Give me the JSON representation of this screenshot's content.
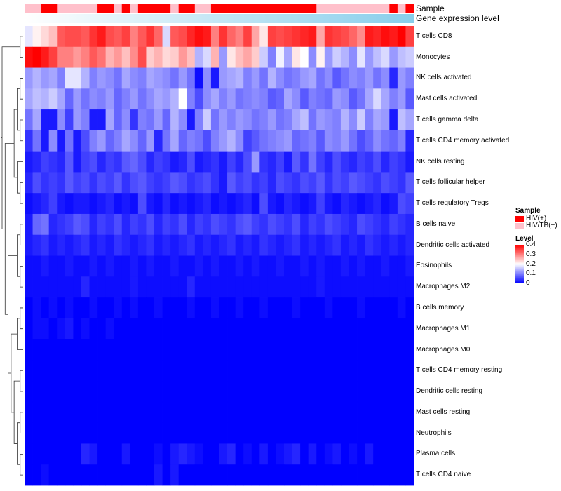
{
  "chart_data": {
    "type": "heatmap",
    "annotation_rows": {
      "sample_label": "Sample",
      "expression_label": "Gene expression level"
    },
    "rows": [
      "T cells CD8",
      "Monocytes",
      "NK cells activated",
      "Mast cells activated",
      "T cells gamma delta",
      "T cells CD4 memory activated",
      "NK cells resting",
      "T cells follicular helper",
      "T cells regulatory  Tregs",
      "B cells naive",
      "Dendritic cells activated",
      "Eosinophils",
      "Macrophages M2",
      "B cells memory",
      "Macrophages M1",
      "Macrophages M0",
      "T cells CD4 memory resting",
      "Dendritic cells resting",
      "Mast cells resting",
      "Neutrophils",
      "Plasma cells",
      "T cells CD4 naive"
    ],
    "sample_groups": [
      1,
      1,
      0,
      0,
      1,
      1,
      1,
      1,
      1,
      0,
      0,
      1,
      0,
      1,
      0,
      0,
      0,
      0,
      1,
      0,
      0,
      1,
      1,
      0,
      0,
      0,
      0,
      0,
      0,
      0,
      0,
      0,
      0,
      0,
      0,
      0,
      1,
      1,
      1,
      1,
      1,
      1,
      1,
      1,
      1,
      0,
      1,
      0
    ],
    "values": [
      [
        0.18,
        0.21,
        0.23,
        0.25,
        0.33,
        0.34,
        0.34,
        0.33,
        0.36,
        0.38,
        0.34,
        0.33,
        0.35,
        0.3,
        0.33,
        0.36,
        0.32,
        0.17,
        0.33,
        0.34,
        0.37,
        0.39,
        0.38,
        0.3,
        0.36,
        0.32,
        0.3,
        0.35,
        0.27,
        0.22,
        0.35,
        0.34,
        0.35,
        0.36,
        0.37,
        0.38,
        0.27,
        0.36,
        0.35,
        0.34,
        0.32,
        0.29,
        0.38,
        0.37,
        0.39,
        0.38,
        0.4,
        0.35
      ],
      [
        0.39,
        0.4,
        0.38,
        0.35,
        0.3,
        0.3,
        0.28,
        0.3,
        0.33,
        0.31,
        0.26,
        0.28,
        0.25,
        0.29,
        0.34,
        0.24,
        0.26,
        0.23,
        0.24,
        0.28,
        0.25,
        0.14,
        0.17,
        0.26,
        0.12,
        0.22,
        0.25,
        0.27,
        0.24,
        0.16,
        0.1,
        0.19,
        0.13,
        0.22,
        0.2,
        0.11,
        0.21,
        0.12,
        0.16,
        0.14,
        0.11,
        0.18,
        0.12,
        0.15,
        0.17,
        0.12,
        0.15,
        0.16
      ],
      [
        0.12,
        0.14,
        0.12,
        0.13,
        0.1,
        0.18,
        0.18,
        0.14,
        0.1,
        0.12,
        0.11,
        0.09,
        0.13,
        0.11,
        0.1,
        0.13,
        0.12,
        0.11,
        0.09,
        0.12,
        0.09,
        0.01,
        0.11,
        0.02,
        0.12,
        0.13,
        0.14,
        0.1,
        0.12,
        0.09,
        0.14,
        0.11,
        0.09,
        0.1,
        0.12,
        0.13,
        0.09,
        0.11,
        0.07,
        0.09,
        0.11,
        0.1,
        0.12,
        0.09,
        0.11,
        0.03,
        0.12,
        0.1
      ],
      [
        0.13,
        0.15,
        0.14,
        0.16,
        0.13,
        0.08,
        0.12,
        0.09,
        0.11,
        0.1,
        0.12,
        0.08,
        0.1,
        0.12,
        0.09,
        0.11,
        0.13,
        0.12,
        0.14,
        0.2,
        0.1,
        0.06,
        0.11,
        0.13,
        0.1,
        0.12,
        0.09,
        0.1,
        0.11,
        0.1,
        0.07,
        0.08,
        0.13,
        0.11,
        0.07,
        0.1,
        0.09,
        0.08,
        0.12,
        0.11,
        0.07,
        0.09,
        0.13,
        0.17,
        0.13,
        0.1,
        0.12,
        0.07
      ],
      [
        0.09,
        0.13,
        0.02,
        0.02,
        0.11,
        0.05,
        0.12,
        0.1,
        0.02,
        0.02,
        0.13,
        0.08,
        0.11,
        0.04,
        0.1,
        0.09,
        0.12,
        0.08,
        0.14,
        0.11,
        0.02,
        0.1,
        0.16,
        0.09,
        0.12,
        0.1,
        0.12,
        0.11,
        0.09,
        0.1,
        0.12,
        0.09,
        0.1,
        0.13,
        0.15,
        0.09,
        0.12,
        0.11,
        0.1,
        0.14,
        0.11,
        0.16,
        0.1,
        0.13,
        0.12,
        0.02,
        0.15,
        0.13
      ],
      [
        0.04,
        0.09,
        0.02,
        0.11,
        0.02,
        0.09,
        0.02,
        0.06,
        0.1,
        0.12,
        0.08,
        0.1,
        0.13,
        0.11,
        0.08,
        0.12,
        0.03,
        0.09,
        0.13,
        0.08,
        0.1,
        0.09,
        0.06,
        0.1,
        0.12,
        0.14,
        0.11,
        0.05,
        0.07,
        0.09,
        0.1,
        0.11,
        0.12,
        0.08,
        0.09,
        0.1,
        0.07,
        0.11,
        0.1,
        0.12,
        0.09,
        0.06,
        0.08,
        0.11,
        0.09,
        0.08,
        0.1,
        0.03
      ],
      [
        0.02,
        0.03,
        0.05,
        0.04,
        0.03,
        0.07,
        0.02,
        0.05,
        0.06,
        0.03,
        0.05,
        0.04,
        0.07,
        0.08,
        0.06,
        0.03,
        0.05,
        0.04,
        0.02,
        0.03,
        0.06,
        0.02,
        0.03,
        0.04,
        0.02,
        0.05,
        0.03,
        0.06,
        0.12,
        0.04,
        0.03,
        0.05,
        0.02,
        0.07,
        0.04,
        0.09,
        0.05,
        0.03,
        0.06,
        0.04,
        0.03,
        0.05,
        0.04,
        0.06,
        0.03,
        0.05,
        0.04,
        0.02
      ],
      [
        0.03,
        0.06,
        0.04,
        0.05,
        0.04,
        0.07,
        0.05,
        0.06,
        0.04,
        0.06,
        0.05,
        0.07,
        0.04,
        0.06,
        0.07,
        0.05,
        0.04,
        0.05,
        0.07,
        0.06,
        0.04,
        0.05,
        0.06,
        0.04,
        0.02,
        0.07,
        0.05,
        0.06,
        0.04,
        0.05,
        0.03,
        0.06,
        0.05,
        0.04,
        0.06,
        0.05,
        0.07,
        0.04,
        0.06,
        0.05,
        0.07,
        0.06,
        0.05,
        0.04,
        0.06,
        0.05,
        0.04,
        0.07
      ],
      [
        0.01,
        0.02,
        0.03,
        0.05,
        0.02,
        0.01,
        0.02,
        0.02,
        0.01,
        0.02,
        0.03,
        0.01,
        0.02,
        0.01,
        0.06,
        0.02,
        0.01,
        0.03,
        0.01,
        0.02,
        0.01,
        0.02,
        0.03,
        0.01,
        0.02,
        0.01,
        0.02,
        0.03,
        0.01,
        0.06,
        0.02,
        0.01,
        0.03,
        0.02,
        0.01,
        0.02,
        0.05,
        0.02,
        0.01,
        0.03,
        0.02,
        0.01,
        0.02,
        0.03,
        0.01,
        0.02,
        0.06,
        0.05
      ],
      [
        0.02,
        0.08,
        0.09,
        0.03,
        0.04,
        0.05,
        0.07,
        0.06,
        0.03,
        0.05,
        0.04,
        0.06,
        0.03,
        0.05,
        0.04,
        0.06,
        0.03,
        0.05,
        0.04,
        0.06,
        0.03,
        0.05,
        0.04,
        0.06,
        0.05,
        0.04,
        0.06,
        0.07,
        0.05,
        0.04,
        0.06,
        0.05,
        0.04,
        0.06,
        0.03,
        0.05,
        0.04,
        0.06,
        0.05,
        0.04,
        0.03,
        0.06,
        0.05,
        0.04,
        0.03,
        0.05,
        0.04,
        0.03
      ],
      [
        0.02,
        0.03,
        0.04,
        0.02,
        0.03,
        0.02,
        0.03,
        0.04,
        0.02,
        0.03,
        0.02,
        0.04,
        0.03,
        0.02,
        0.03,
        0.04,
        0.02,
        0.03,
        0.02,
        0.03,
        0.04,
        0.02,
        0.03,
        0.02,
        0.03,
        0.04,
        0.02,
        0.03,
        0.02,
        0.04,
        0.03,
        0.02,
        0.03,
        0.04,
        0.02,
        0.03,
        0.02,
        0.03,
        0.04,
        0.02,
        0.03,
        0.02,
        0.04,
        0.03,
        0.02,
        0.03,
        0.02,
        0.03
      ],
      [
        0.01,
        0.01,
        0.02,
        0.01,
        0.01,
        0.02,
        0.01,
        0.01,
        0.02,
        0.01,
        0.02,
        0.01,
        0.01,
        0.02,
        0.01,
        0.02,
        0.01,
        0.01,
        0.02,
        0.01,
        0.01,
        0.02,
        0.01,
        0.02,
        0.01,
        0.01,
        0.02,
        0.01,
        0.02,
        0.01,
        0.01,
        0.02,
        0.01,
        0.01,
        0.02,
        0.01,
        0.02,
        0.01,
        0.01,
        0.02,
        0.01,
        0.02,
        0.01,
        0.01,
        0.02,
        0.01,
        0.01,
        0.02
      ],
      [
        0.01,
        0.01,
        0.01,
        0.01,
        0.01,
        0.01,
        0.01,
        0.03,
        0.01,
        0.01,
        0.01,
        0.01,
        0.01,
        0.02,
        0.01,
        0.01,
        0.01,
        0.01,
        0.01,
        0.01,
        0.03,
        0.01,
        0.01,
        0.01,
        0.01,
        0.01,
        0.01,
        0.01,
        0.01,
        0.01,
        0.01,
        0.01,
        0.01,
        0.01,
        0.01,
        0.01,
        0.02,
        0.01,
        0.01,
        0.01,
        0.01,
        0.01,
        0.01,
        0.01,
        0.01,
        0.01,
        0.01,
        0.01
      ],
      [
        0.0,
        0.01,
        0.0,
        0.01,
        0.0,
        0.01,
        0.0,
        0.0,
        0.01,
        0.0,
        0.0,
        0.01,
        0.0,
        0.01,
        0.0,
        0.0,
        0.01,
        0.0,
        0.0,
        0.0,
        0.01,
        0.0,
        0.0,
        0.01,
        0.0,
        0.0,
        0.01,
        0.0,
        0.0,
        0.01,
        0.0,
        0.0,
        0.0,
        0.01,
        0.0,
        0.0,
        0.0,
        0.01,
        0.0,
        0.0,
        0.0,
        0.01,
        0.0,
        0.0,
        0.0,
        0.0,
        0.01,
        0.0
      ],
      [
        0.0,
        0.01,
        0.01,
        0.0,
        0.01,
        0.02,
        0.0,
        0.01,
        0.0,
        0.0,
        0.01,
        0.0,
        0.0,
        0.0,
        0.0,
        0.0,
        0.0,
        0.0,
        0.0,
        0.0,
        0.0,
        0.0,
        0.0,
        0.0,
        0.0,
        0.0,
        0.0,
        0.0,
        0.0,
        0.0,
        0.0,
        0.0,
        0.0,
        0.0,
        0.0,
        0.0,
        0.0,
        0.0,
        0.0,
        0.0,
        0.0,
        0.0,
        0.0,
        0.0,
        0.0,
        0.0,
        0.0,
        0.0
      ],
      [
        0.0,
        0.0,
        0.0,
        0.0,
        0.0,
        0.0,
        0.0,
        0.0,
        0.0,
        0.0,
        0.0,
        0.0,
        0.0,
        0.0,
        0.0,
        0.0,
        0.0,
        0.0,
        0.0,
        0.0,
        0.0,
        0.0,
        0.0,
        0.0,
        0.0,
        0.0,
        0.0,
        0.0,
        0.0,
        0.0,
        0.0,
        0.0,
        0.0,
        0.0,
        0.0,
        0.0,
        0.0,
        0.0,
        0.0,
        0.0,
        0.0,
        0.0,
        0.0,
        0.0,
        0.0,
        0.0,
        0.0,
        0.0
      ],
      [
        0.0,
        0.0,
        0.0,
        0.0,
        0.0,
        0.0,
        0.0,
        0.0,
        0.0,
        0.0,
        0.0,
        0.0,
        0.0,
        0.0,
        0.0,
        0.0,
        0.0,
        0.0,
        0.0,
        0.0,
        0.0,
        0.0,
        0.0,
        0.0,
        0.0,
        0.0,
        0.0,
        0.0,
        0.0,
        0.0,
        0.0,
        0.0,
        0.0,
        0.0,
        0.0,
        0.0,
        0.0,
        0.0,
        0.0,
        0.0,
        0.0,
        0.0,
        0.0,
        0.0,
        0.0,
        0.0,
        0.0,
        0.0
      ],
      [
        0.0,
        0.0,
        0.0,
        0.0,
        0.0,
        0.0,
        0.0,
        0.0,
        0.0,
        0.0,
        0.0,
        0.0,
        0.0,
        0.0,
        0.0,
        0.0,
        0.0,
        0.0,
        0.0,
        0.0,
        0.0,
        0.0,
        0.0,
        0.0,
        0.0,
        0.0,
        0.0,
        0.0,
        0.0,
        0.0,
        0.0,
        0.0,
        0.0,
        0.0,
        0.0,
        0.0,
        0.0,
        0.0,
        0.0,
        0.0,
        0.0,
        0.0,
        0.0,
        0.0,
        0.0,
        0.0,
        0.0,
        0.0
      ],
      [
        0.0,
        0.0,
        0.0,
        0.0,
        0.0,
        0.0,
        0.0,
        0.0,
        0.0,
        0.0,
        0.0,
        0.0,
        0.0,
        0.0,
        0.0,
        0.0,
        0.0,
        0.0,
        0.0,
        0.0,
        0.0,
        0.0,
        0.0,
        0.0,
        0.0,
        0.0,
        0.0,
        0.0,
        0.0,
        0.0,
        0.0,
        0.0,
        0.0,
        0.0,
        0.0,
        0.0,
        0.0,
        0.0,
        0.0,
        0.0,
        0.0,
        0.0,
        0.0,
        0.0,
        0.0,
        0.0,
        0.0,
        0.0
      ],
      [
        0.0,
        0.0,
        0.0,
        0.0,
        0.0,
        0.0,
        0.0,
        0.0,
        0.0,
        0.0,
        0.0,
        0.0,
        0.0,
        0.0,
        0.0,
        0.0,
        0.0,
        0.0,
        0.0,
        0.0,
        0.0,
        0.0,
        0.0,
        0.0,
        0.0,
        0.0,
        0.0,
        0.0,
        0.0,
        0.0,
        0.0,
        0.0,
        0.0,
        0.0,
        0.0,
        0.0,
        0.0,
        0.0,
        0.0,
        0.0,
        0.0,
        0.0,
        0.0,
        0.0,
        0.0,
        0.0,
        0.0,
        0.0
      ],
      [
        0.0,
        0.0,
        0.0,
        0.0,
        0.0,
        0.0,
        0.0,
        0.03,
        0.02,
        0.0,
        0.0,
        0.0,
        0.02,
        0.0,
        0.0,
        0.0,
        0.01,
        0.0,
        0.02,
        0.03,
        0.02,
        0.01,
        0.0,
        0.0,
        0.02,
        0.03,
        0.0,
        0.01,
        0.0,
        0.02,
        0.0,
        0.01,
        0.02,
        0.03,
        0.0,
        0.02,
        0.0,
        0.01,
        0.02,
        0.0,
        0.01,
        0.0,
        0.02,
        0.0,
        0.0,
        0.0,
        0.0,
        0.0
      ],
      [
        0.0,
        0.0,
        0.01,
        0.0,
        0.0,
        0.0,
        0.0,
        0.0,
        0.0,
        0.0,
        0.0,
        0.0,
        0.0,
        0.0,
        0.0,
        0.0,
        0.02,
        0.0,
        0.02,
        0.0,
        0.0,
        0.0,
        0.0,
        0.0,
        0.0,
        0.0,
        0.0,
        0.0,
        0.0,
        0.0,
        0.0,
        0.0,
        0.0,
        0.0,
        0.0,
        0.0,
        0.0,
        0.0,
        0.0,
        0.0,
        0.0,
        0.0,
        0.0,
        0.0,
        0.0,
        0.0,
        0.0,
        0.0
      ]
    ],
    "color_scale": {
      "min": 0,
      "max": 0.4,
      "stops": [
        {
          "value": 0.0,
          "color": "#0000FF"
        },
        {
          "value": 0.2,
          "color": "#FFFFFF"
        },
        {
          "value": 0.4,
          "color": "#FF0000"
        }
      ]
    },
    "legend": {
      "sample_title": "Sample",
      "groups": [
        {
          "label": "HIV(+)",
          "color": "#FF0000"
        },
        {
          "label": "HIV/TB(+)",
          "color": "#FFC0CB"
        }
      ],
      "level_title": "Level",
      "ticks": [
        "0.4",
        "0.3",
        "0.2",
        "0.1",
        "0"
      ],
      "tick_values": [
        0.4,
        0.3,
        0.2,
        0.1,
        0
      ],
      "placement": "right"
    },
    "expression_gradient": {
      "from": "#FFFFFF",
      "to": "#87CEEB"
    }
  }
}
